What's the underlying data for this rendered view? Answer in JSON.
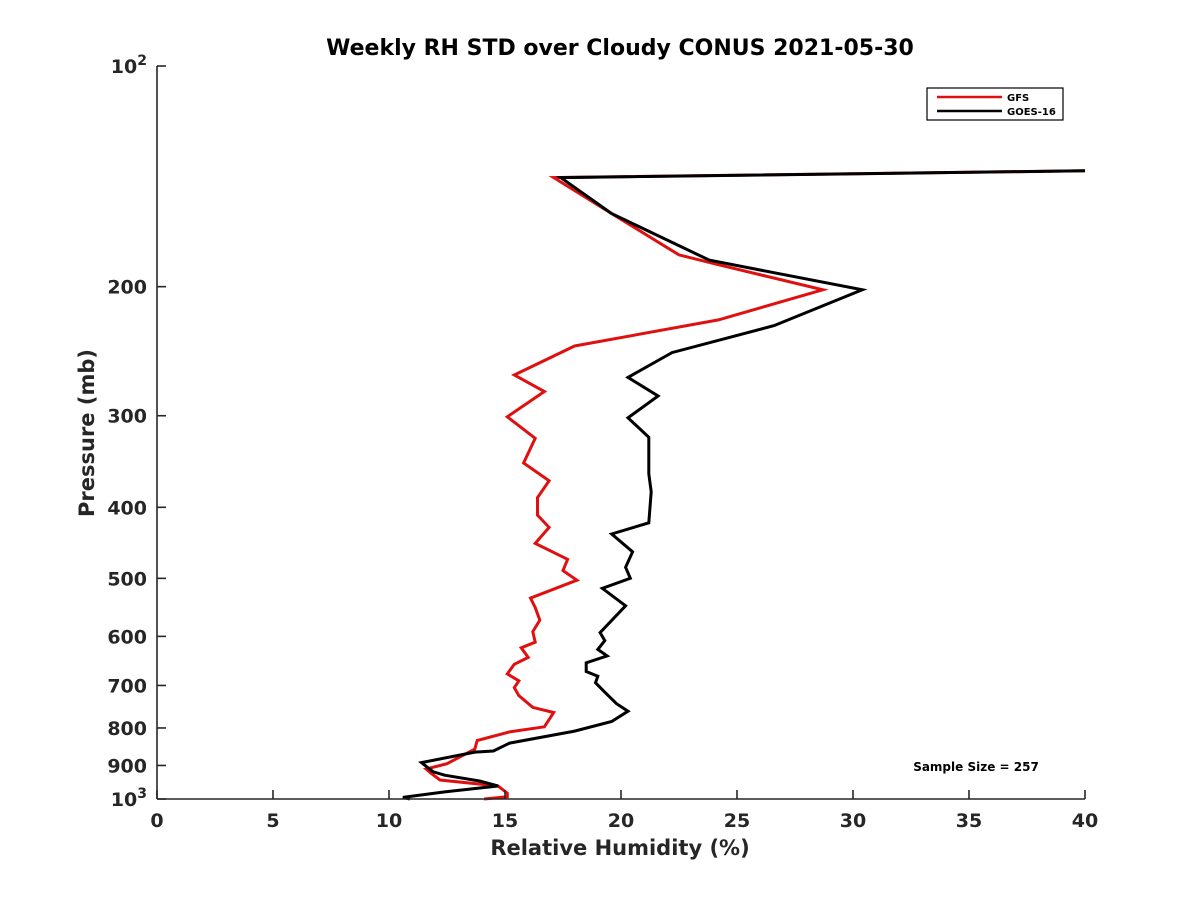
{
  "chart_data": {
    "type": "line",
    "title": "Weekly RH STD over Cloudy CONUS 2021-05-30",
    "xlabel": "Relative Humidity (%)",
    "ylabel": "Pressure (mb)",
    "xlim": [
      0,
      40
    ],
    "ylim": [
      100,
      1000
    ],
    "y_scale": "log",
    "y_reversed": true,
    "grid": false,
    "legend_position": "top-right",
    "x_ticks": [
      0,
      5,
      10,
      15,
      20,
      25,
      30,
      35,
      40
    ],
    "x_tick_labels": [
      "0",
      "5",
      "10",
      "15",
      "20",
      "25",
      "30",
      "35",
      "40"
    ],
    "y_ticks": [
      {
        "value": 100,
        "base": "10",
        "exp": "2"
      },
      {
        "value": 200,
        "label": "200"
      },
      {
        "value": 300,
        "label": "300"
      },
      {
        "value": 400,
        "label": "400"
      },
      {
        "value": 500,
        "label": "500"
      },
      {
        "value": 600,
        "label": "600"
      },
      {
        "value": 700,
        "label": "700"
      },
      {
        "value": 800,
        "label": "800"
      },
      {
        "value": 900,
        "label": "900"
      },
      {
        "value": 1000,
        "base": "10",
        "exp": "3"
      }
    ],
    "annotation": "Sample Size = 257",
    "series": [
      {
        "name": "GFS",
        "color": "#e01010",
        "points": [
          [
            40.0,
            139
          ],
          [
            17.1,
            142
          ],
          [
            19.6,
            159
          ],
          [
            22.5,
            181
          ],
          [
            24.0,
            186
          ],
          [
            28.7,
            202
          ],
          [
            24.2,
            222
          ],
          [
            18.0,
            241
          ],
          [
            15.4,
            264
          ],
          [
            16.7,
            278
          ],
          [
            15.1,
            301
          ],
          [
            16.3,
            322
          ],
          [
            15.8,
            348
          ],
          [
            16.9,
            368
          ],
          [
            16.4,
            388
          ],
          [
            16.4,
            410
          ],
          [
            16.9,
            426
          ],
          [
            16.3,
            448
          ],
          [
            17.7,
            471
          ],
          [
            17.5,
            488
          ],
          [
            18.1,
            503
          ],
          [
            16.1,
            532
          ],
          [
            16.3,
            548
          ],
          [
            16.5,
            570
          ],
          [
            16.2,
            591
          ],
          [
            16.3,
            611
          ],
          [
            15.7,
            622
          ],
          [
            16.0,
            641
          ],
          [
            15.4,
            655
          ],
          [
            15.1,
            675
          ],
          [
            15.6,
            690
          ],
          [
            15.4,
            705
          ],
          [
            15.6,
            723
          ],
          [
            16.2,
            750
          ],
          [
            17.1,
            762
          ],
          [
            16.7,
            797
          ],
          [
            15.2,
            810
          ],
          [
            13.8,
            832
          ],
          [
            13.7,
            855
          ],
          [
            12.5,
            895
          ],
          [
            11.6,
            910
          ],
          [
            11.8,
            922
          ],
          [
            12.2,
            942
          ],
          [
            14.7,
            960
          ],
          [
            15.1,
            982
          ],
          [
            15.1,
            993
          ],
          [
            14.1,
            1000
          ]
        ]
      },
      {
        "name": "GOES-16",
        "color": "#000000",
        "points": [
          [
            40.0,
            139
          ],
          [
            17.4,
            142
          ],
          [
            19.6,
            159
          ],
          [
            23.8,
            184
          ],
          [
            30.4,
            202
          ],
          [
            26.6,
            226
          ],
          [
            22.2,
            246
          ],
          [
            20.3,
            266
          ],
          [
            21.6,
            282
          ],
          [
            20.3,
            302
          ],
          [
            21.2,
            321
          ],
          [
            21.2,
            360
          ],
          [
            21.3,
            381
          ],
          [
            21.2,
            420
          ],
          [
            19.6,
            435
          ],
          [
            20.5,
            460
          ],
          [
            20.2,
            483
          ],
          [
            20.4,
            500
          ],
          [
            19.2,
            516
          ],
          [
            20.2,
            545
          ],
          [
            19.1,
            593
          ],
          [
            19.3,
            608
          ],
          [
            19.0,
            625
          ],
          [
            19.4,
            638
          ],
          [
            18.5,
            652
          ],
          [
            18.5,
            670
          ],
          [
            19.0,
            680
          ],
          [
            18.9,
            694
          ],
          [
            19.3,
            715
          ],
          [
            19.8,
            741
          ],
          [
            20.3,
            759
          ],
          [
            19.6,
            784
          ],
          [
            18.0,
            808
          ],
          [
            15.2,
            839
          ],
          [
            14.5,
            860
          ],
          [
            13.7,
            863
          ],
          [
            11.4,
            892
          ],
          [
            11.9,
            918
          ],
          [
            12.4,
            928
          ],
          [
            13.9,
            945
          ],
          [
            14.7,
            960
          ],
          [
            12.4,
            978
          ],
          [
            10.6,
            995
          ],
          [
            10.9,
            1000
          ]
        ]
      }
    ]
  }
}
